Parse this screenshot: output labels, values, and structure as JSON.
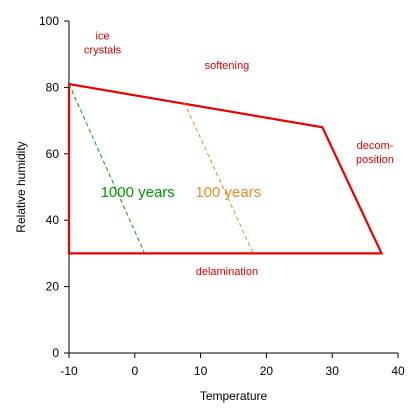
{
  "chart_data": {
    "type": "line",
    "xlabel": "Temperature",
    "ylabel": "Relative humidity",
    "xlim": [
      -10,
      40
    ],
    "ylim": [
      0,
      100
    ],
    "xticks": [
      -10,
      0,
      10,
      20,
      30,
      40
    ],
    "yticks": [
      0,
      20,
      40,
      60,
      80,
      100
    ],
    "grid": false,
    "safe_region": {
      "color": "#ee0000",
      "boundary": [
        {
          "x": -10,
          "y": 81
        },
        {
          "x": 28.5,
          "y": 68
        },
        {
          "x": 37.5,
          "y": 30
        },
        {
          "x": -10,
          "y": 30
        }
      ]
    },
    "series": [
      {
        "name": "1000 years",
        "color": "#009900",
        "dashed": true,
        "points": [
          {
            "x": -10,
            "y": 81
          },
          {
            "x": 1.5,
            "y": 30
          }
        ]
      },
      {
        "name": "100 years",
        "color": "#ee8822",
        "dashed": true,
        "points": [
          {
            "x": 7.5,
            "y": 75.5
          },
          {
            "x": 18,
            "y": 30
          }
        ]
      }
    ],
    "annotations": [
      {
        "lines": [
          "ice",
          "crystals"
        ],
        "x": -4.9,
        "y": 94.5,
        "color": "#dd0000"
      },
      {
        "lines": [
          "softening"
        ],
        "x": 14,
        "y": 85.5,
        "color": "#dd0000"
      },
      {
        "lines": [
          "decom-",
          "position"
        ],
        "x": 36.5,
        "y": 61.5,
        "color": "#dd0000"
      },
      {
        "lines": [
          "delamination"
        ],
        "x": 14,
        "y": 23.5,
        "color": "#dd0000"
      }
    ]
  }
}
